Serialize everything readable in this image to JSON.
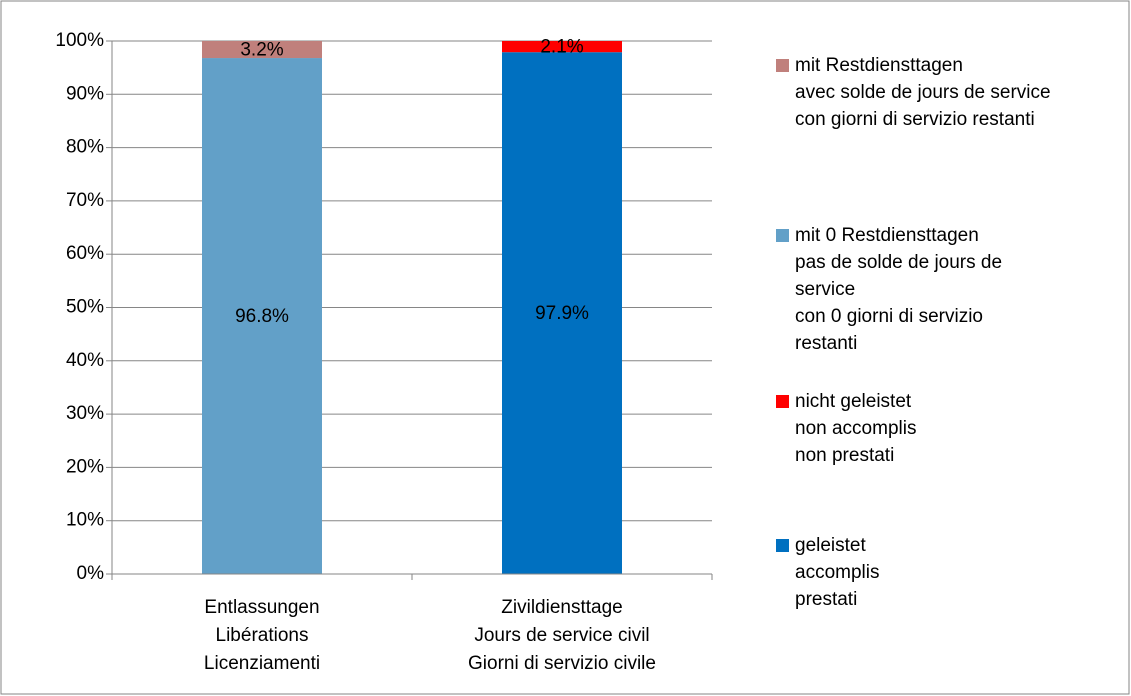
{
  "chart_data": {
    "type": "stacked_bar",
    "categories": [
      "Entlassungen\nLibérations\nLicenziamenti",
      "Zivildiensttage\nJours de service civil\nGiorni di servizio civile"
    ],
    "series": [
      {
        "name": "mit Restdiensttagen\navec solde de jours de service\ncon giorni di servizio restanti",
        "color": "#c0807c",
        "values": [
          3.2,
          null
        ],
        "value_labels": [
          "3.2%",
          null
        ]
      },
      {
        "name": "mit 0 Restdiensttagen\npas de solde de jours de\nservice\ncon 0 giorni di servizio\nrestanti",
        "color": "#62a0c8",
        "values": [
          96.8,
          null
        ],
        "value_labels": [
          "96.8%",
          null
        ]
      },
      {
        "name": "nicht geleistet\nnon accomplis\nnon prestati",
        "color": "#ff0000",
        "values": [
          null,
          2.1
        ],
        "value_labels": [
          null,
          "2.1%"
        ]
      },
      {
        "name": "geleistet\naccomplis\nprestati",
        "color": "#0070c0",
        "values": [
          null,
          97.9
        ],
        "value_labels": [
          null,
          "97.9%"
        ]
      }
    ],
    "ylim": [
      0,
      100
    ],
    "yticks": [
      {
        "value": 0,
        "label": "0%"
      },
      {
        "value": 10,
        "label": "10%"
      },
      {
        "value": 20,
        "label": "20%"
      },
      {
        "value": 30,
        "label": "30%"
      },
      {
        "value": 40,
        "label": "40%"
      },
      {
        "value": 50,
        "label": "50%"
      },
      {
        "value": 60,
        "label": "60%"
      },
      {
        "value": 70,
        "label": "70%"
      },
      {
        "value": 80,
        "label": "80%"
      },
      {
        "value": 90,
        "label": "90%"
      },
      {
        "value": 100,
        "label": "100%"
      }
    ],
    "grid": true,
    "legend": "right"
  }
}
